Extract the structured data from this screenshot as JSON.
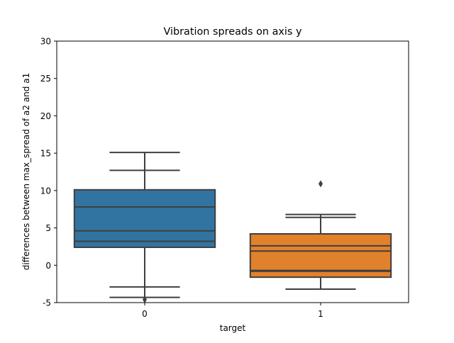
{
  "chart_data": {
    "type": "box",
    "title": "Vibration spreads on axis y",
    "xlabel": "target",
    "ylabel": "differences between max_spread of a2 and a1",
    "ylim": [
      -5,
      30
    ],
    "yticks": [
      -5,
      0,
      5,
      10,
      15,
      20,
      25,
      30
    ],
    "grid": false,
    "categories": [
      "0",
      "1"
    ],
    "colors": {
      "0": "#3274a1",
      "1": "#e1812c",
      "stroke": "#3f3f3f"
    },
    "boxes": [
      {
        "category": "0",
        "whisker_low": -4.3,
        "q1": 2.4,
        "median": 4.6,
        "q3": 10.1,
        "whisker_high": 15.1,
        "outliers": [
          -4.6
        ],
        "extra_lines": [
          -2.9,
          3.2,
          7.8,
          12.7
        ]
      },
      {
        "category": "1",
        "whisker_low": -3.2,
        "q1": -1.6,
        "median": 1.9,
        "q3": 4.2,
        "whisker_high": 6.8,
        "outliers": [
          10.9
        ],
        "extra_lines": [
          -0.7,
          -0.8,
          2.6,
          6.4
        ]
      }
    ]
  }
}
